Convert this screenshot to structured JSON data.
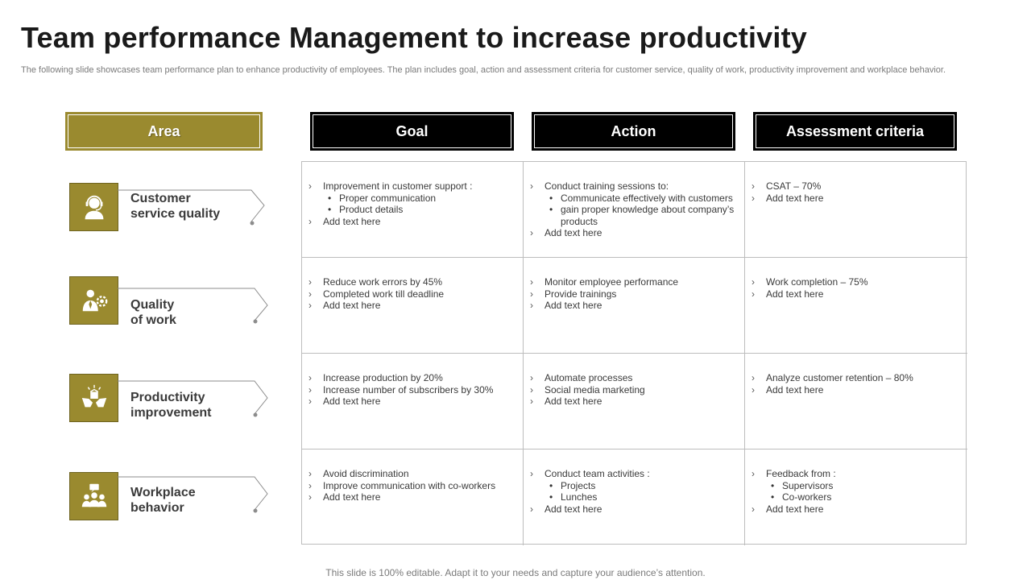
{
  "title": "Team performance Management to increase productivity",
  "subtitle": "The following slide showcases team performance plan to enhance productivity of employees. The plan includes goal, action and assessment criteria for customer service, quality of work, productivity improvement and workplace behavior.",
  "headers": {
    "area": "Area",
    "goal": "Goal",
    "action": "Action",
    "assessment": "Assessment criteria"
  },
  "areas": [
    {
      "line1": "Customer",
      "line2": "service quality",
      "icon": "headset-agent-icon"
    },
    {
      "line1": "Quality",
      "line2": "of work",
      "icon": "businessman-gear-icon"
    },
    {
      "line1": "Productivity",
      "line2": "improvement",
      "icon": "hands-box-icon"
    },
    {
      "line1": "Workplace",
      "line2": "behavior",
      "icon": "team-chat-icon"
    }
  ],
  "rows": [
    {
      "goal": [
        "Improvement in customer support :",
        "Proper communication",
        "Product details",
        "Add text here"
      ],
      "action": [
        "Conduct training sessions to:",
        "Communicate effectively with customers",
        "gain proper knowledge about company’s products",
        "Add text here"
      ],
      "assessment": [
        "CSAT – 70%",
        "Add text here"
      ]
    },
    {
      "goal": [
        "Reduce work errors by 45%",
        "Completed work till deadline",
        "Add text here"
      ],
      "action": [
        "Monitor employee performance",
        "Provide trainings",
        "Add text here"
      ],
      "assessment": [
        "Work completion – 75%",
        "Add text here"
      ]
    },
    {
      "goal": [
        "Increase production by 20%",
        "Increase number of subscribers by 30%",
        "Add text here"
      ],
      "action": [
        "Automate processes",
        "Social media marketing",
        "Add text here"
      ],
      "assessment": [
        "Analyze customer retention – 80%",
        "Add text here"
      ]
    },
    {
      "goal": [
        "Avoid discrimination",
        "Improve communication with co-workers",
        "Add text here"
      ],
      "action": [
        "Conduct team activities :",
        "Projects",
        "Lunches",
        "Add text here"
      ],
      "assessment": [
        "Feedback from :",
        "Supervisors",
        "Co-workers",
        "Add text here"
      ]
    }
  ],
  "footer": "This slide is 100% editable. Adapt it to your needs and capture your audience’s attention.",
  "colors": {
    "accent": "#9a8a2f",
    "header_dark": "#000000"
  }
}
